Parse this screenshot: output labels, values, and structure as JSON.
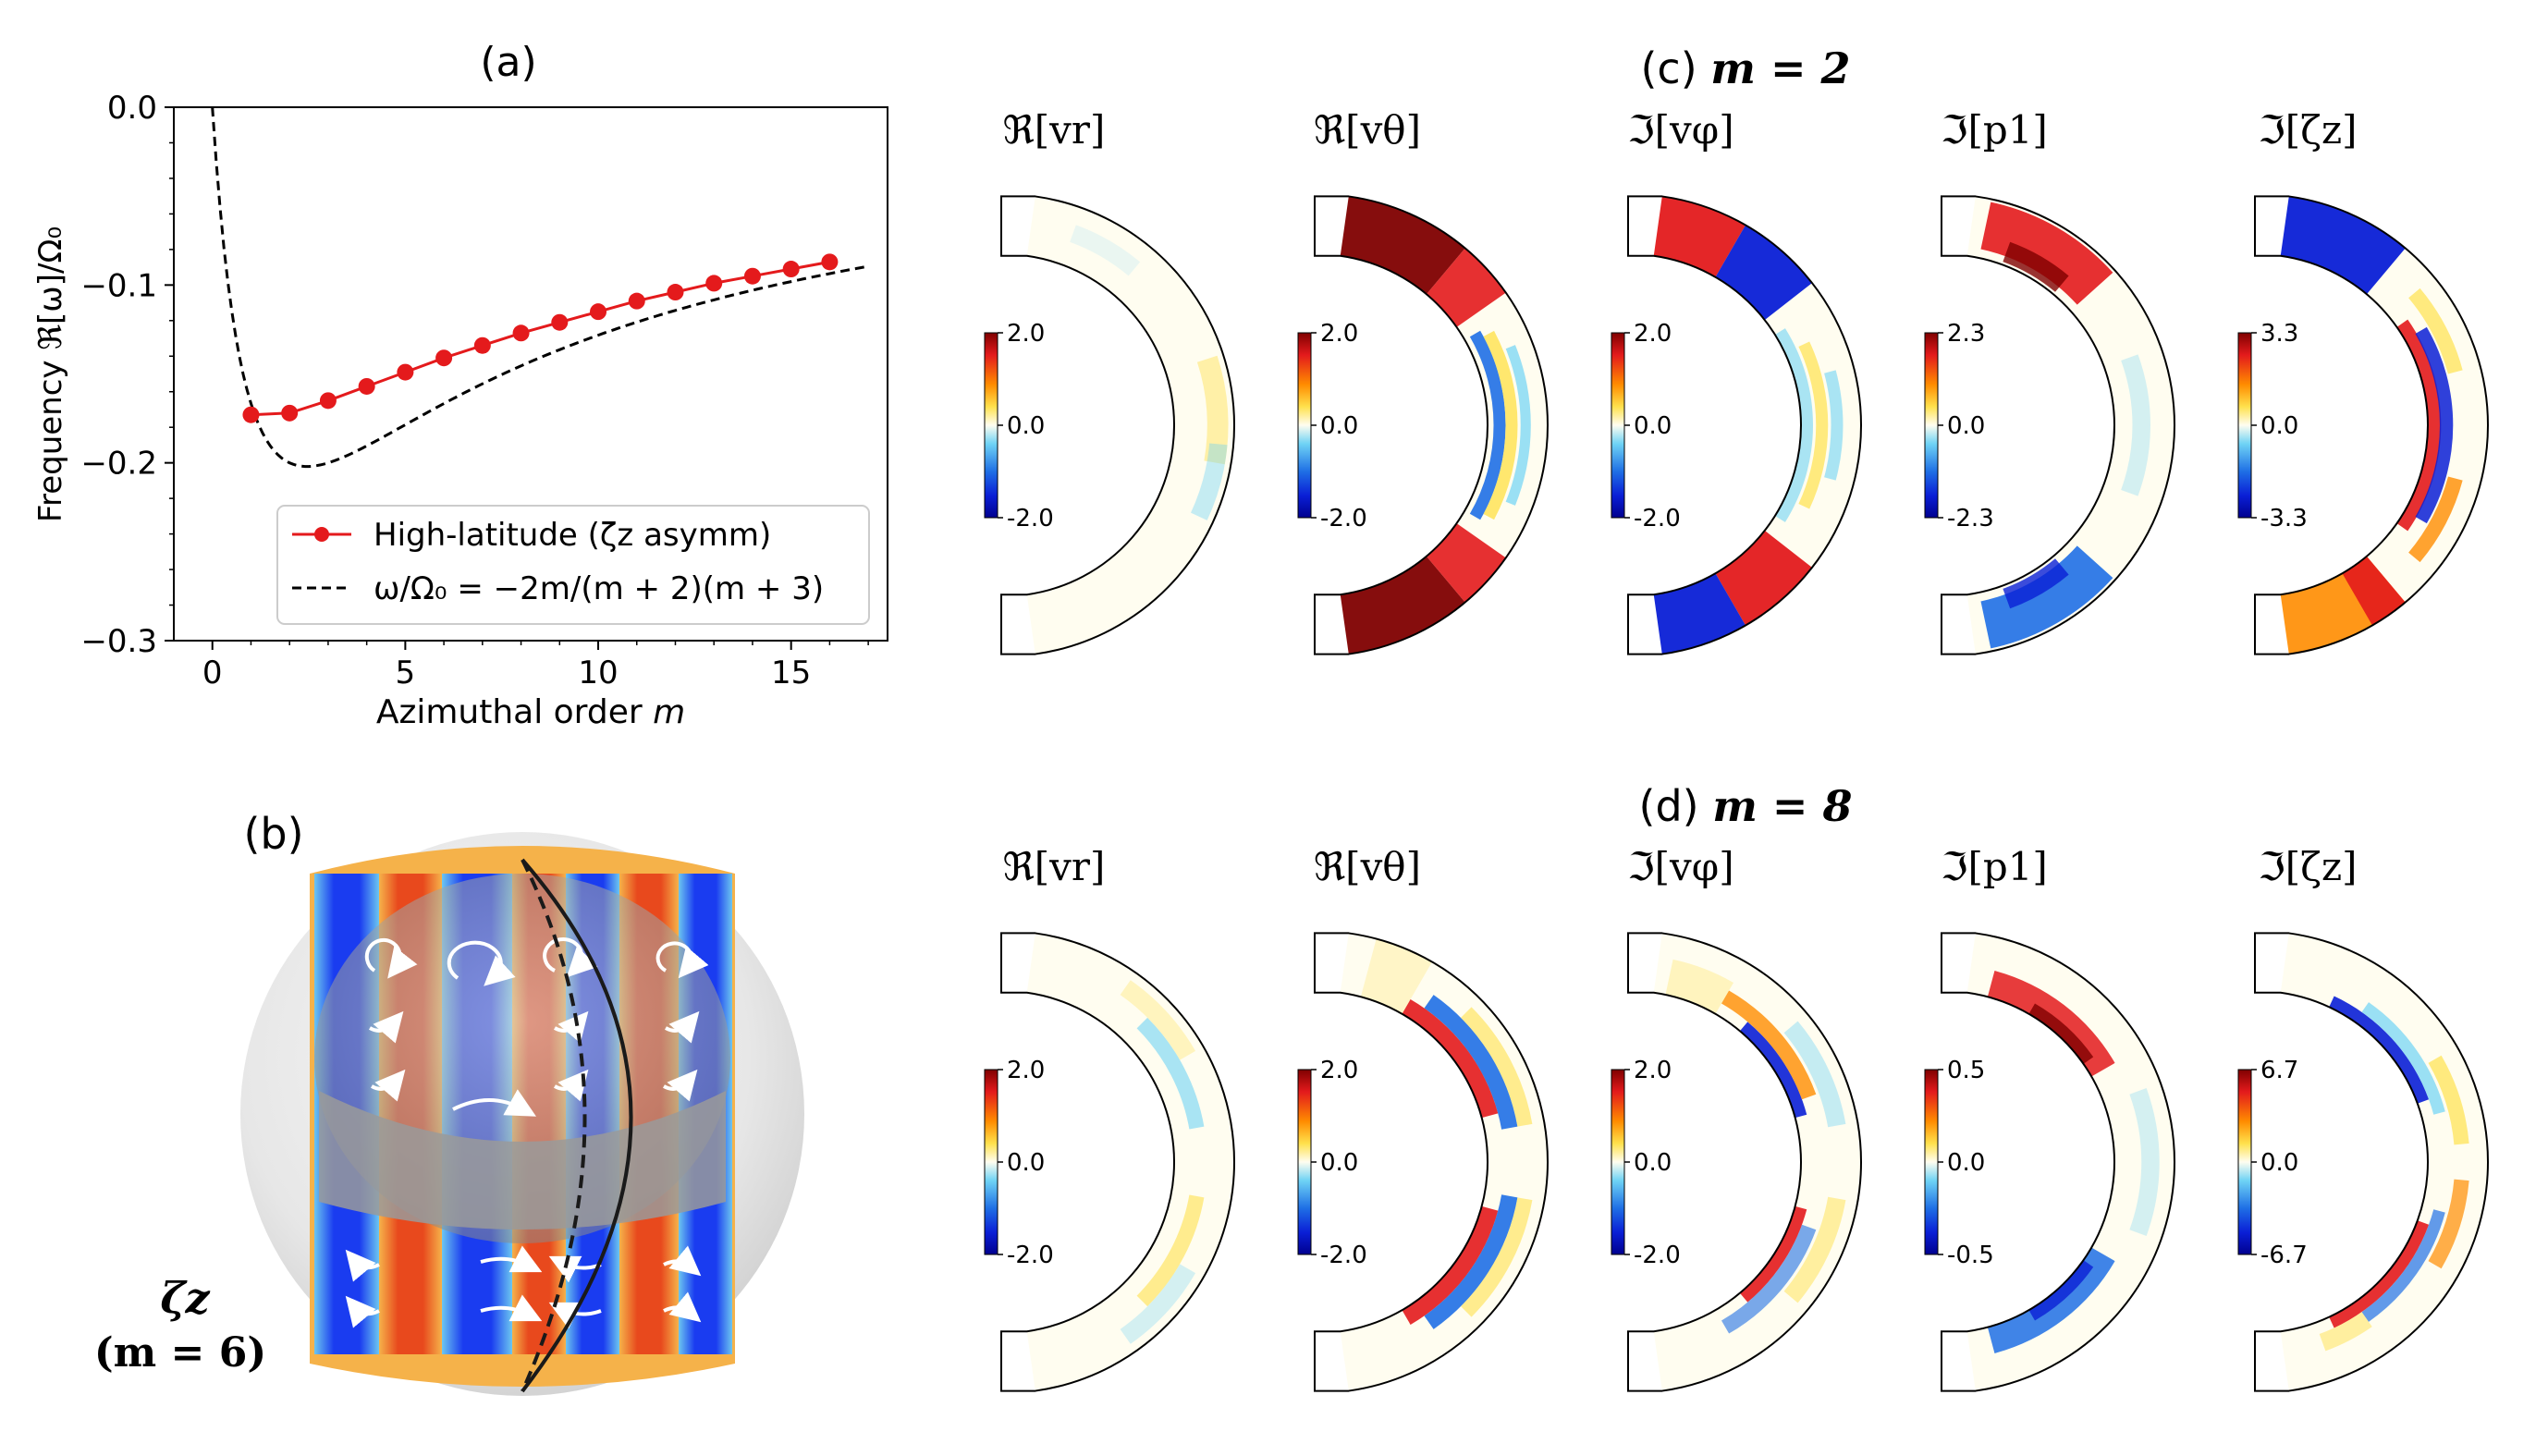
{
  "chart_data": [
    {
      "panel": "(a)",
      "type": "line",
      "title": "(a)",
      "xlabel_prefix": "Azimuthal order ",
      "xlabel_var": "m",
      "ylabel": "Frequency ℜ[ω]/Ω₀",
      "xlim": [
        -1,
        17.5
      ],
      "ylim": [
        -0.3,
        0.0
      ],
      "xticks": [
        0,
        5,
        10,
        15
      ],
      "xtick_labels": [
        "0",
        "5",
        "10",
        "15"
      ],
      "yticks": [
        0.0,
        -0.1,
        -0.2,
        -0.3
      ],
      "ytick_labels": [
        "0.0",
        "−0.1",
        "−0.2",
        "−0.3"
      ],
      "legend_position": "lower-right",
      "series": [
        {
          "name": "High-latitude (ζz asymm)",
          "style": "solid-marker",
          "color": "#e41a1c",
          "x": [
            1,
            2,
            3,
            4,
            5,
            6,
            7,
            8,
            9,
            10,
            11,
            12,
            13,
            14,
            15,
            16
          ],
          "y": [
            -0.173,
            -0.172,
            -0.165,
            -0.157,
            -0.149,
            -0.141,
            -0.134,
            -0.127,
            -0.121,
            -0.115,
            -0.109,
            -0.104,
            -0.099,
            -0.095,
            -0.091,
            -0.087
          ]
        },
        {
          "name": "ω/Ω₀ = −2m/(m + 2)(m + 3)",
          "style": "dashed",
          "color": "#000000",
          "formula": "-2m/((m+2)(m+3))",
          "x_range": [
            0,
            17
          ]
        }
      ]
    },
    {
      "panel": "(c)",
      "type": "heatmap",
      "title_prefix": "(c) ",
      "title_eq": "m = 2",
      "fields": [
        {
          "label": "ℜ[vr]",
          "cmax": "2.0",
          "cmid": "0.0",
          "cmin": "-2.0",
          "pattern": "weak"
        },
        {
          "label": "ℜ[vθ]",
          "cmax": "2.0",
          "cmid": "0.0",
          "cmin": "-2.0",
          "pattern": "theta2"
        },
        {
          "label": "ℑ[vφ]",
          "cmax": "2.0",
          "cmid": "0.0",
          "cmin": "-2.0",
          "pattern": "phi2"
        },
        {
          "label": "ℑ[p1]",
          "cmax": "2.3",
          "cmid": "0.0",
          "cmin": "-2.3",
          "pattern": "p2"
        },
        {
          "label": "ℑ[ζz]",
          "cmax": "3.3",
          "cmid": "0.0",
          "cmin": "-3.3",
          "pattern": "zeta2"
        }
      ]
    },
    {
      "panel": "(d)",
      "type": "heatmap",
      "title_prefix": "(d) ",
      "title_eq": "m = 8",
      "fields": [
        {
          "label": "ℜ[vr]",
          "cmax": "2.0",
          "cmid": "0.0",
          "cmin": "-2.0",
          "pattern": "weak8"
        },
        {
          "label": "ℜ[vθ]",
          "cmax": "2.0",
          "cmid": "0.0",
          "cmin": "-2.0",
          "pattern": "theta8"
        },
        {
          "label": "ℑ[vφ]",
          "cmax": "2.0",
          "cmid": "0.0",
          "cmin": "-2.0",
          "pattern": "phi8"
        },
        {
          "label": "ℑ[p1]",
          "cmax": "0.5",
          "cmid": "0.0",
          "cmin": "-0.5",
          "pattern": "p8"
        },
        {
          "label": "ℑ[ζz]",
          "cmax": "6.7",
          "cmid": "0.0",
          "cmin": "-6.7",
          "pattern": "zeta8"
        }
      ]
    }
  ],
  "panel_b": {
    "label": "(b)",
    "caption_var": "ζz",
    "caption_mode": "(m = 6)"
  }
}
